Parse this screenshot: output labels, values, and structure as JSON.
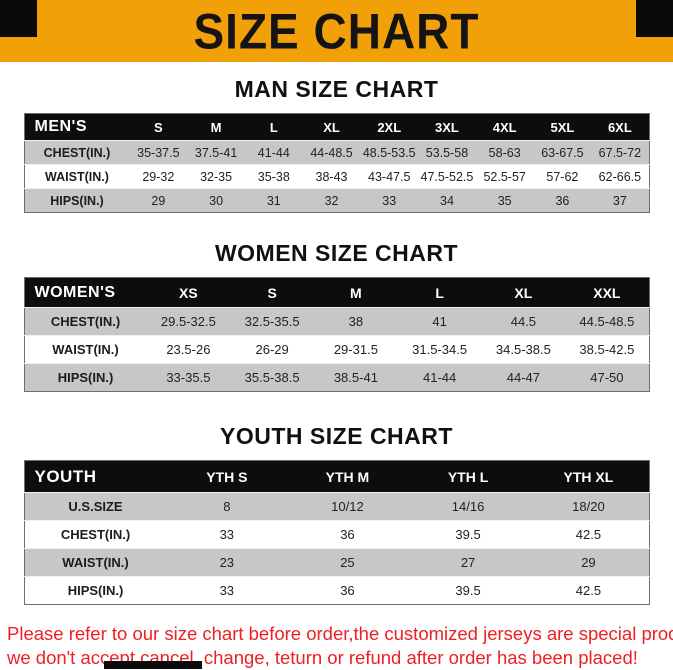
{
  "banner": {
    "title": "SIZE CHART"
  },
  "colors": {
    "banner_background": "#F2A008",
    "table_header_background": "#0d0d0d",
    "row_stripe": "#c7c7c7",
    "footer_text": "#ED2024"
  },
  "sections": [
    {
      "heading": "MAN SIZE CHART",
      "table": {
        "header": [
          "MEN'S",
          "S",
          "M",
          "L",
          "XL",
          "2XL",
          "3XL",
          "4XL",
          "5XL",
          "6XL"
        ],
        "rows": [
          {
            "label": "CHEST(IN.)",
            "values": [
              "35-37.5",
              "37.5-41",
              "41-44",
              "44-48.5",
              "48.5-53.5",
              "53.5-58",
              "58-63",
              "63-67.5",
              "67.5-72"
            ]
          },
          {
            "label": "WAIST(IN.)",
            "values": [
              "29-32",
              "32-35",
              "35-38",
              "38-43",
              "43-47.5",
              "47.5-52.5",
              "52.5-57",
              "57-62",
              "62-66.5"
            ]
          },
          {
            "label": "HIPS(IN.)",
            "values": [
              "29",
              "30",
              "31",
              "32",
              "33",
              "34",
              "35",
              "36",
              "37"
            ]
          }
        ]
      }
    },
    {
      "heading": "WOMEN SIZE CHART",
      "table": {
        "header": [
          "WOMEN'S",
          "XS",
          "S",
          "M",
          "L",
          "XL",
          "XXL"
        ],
        "rows": [
          {
            "label": "CHEST(IN.)",
            "values": [
              "29.5-32.5",
              "32.5-35.5",
              "38",
              "41",
              "44.5",
              "44.5-48.5"
            ]
          },
          {
            "label": "WAIST(IN.)",
            "values": [
              "23.5-26",
              "26-29",
              "29-31.5",
              "31.5-34.5",
              "34.5-38.5",
              "38.5-42.5"
            ]
          },
          {
            "label": "HIPS(IN.)",
            "values": [
              "33-35.5",
              "35.5-38.5",
              "38.5-41",
              "41-44",
              "44-47",
              "47-50"
            ]
          }
        ]
      }
    },
    {
      "heading": "YOUTH SIZE CHART",
      "table": {
        "header": [
          "YOUTH",
          "YTH S",
          "YTH M",
          "YTH L",
          "YTH XL"
        ],
        "rows": [
          {
            "label": "U.S.SIZE",
            "values": [
              "8",
              "10/12",
              "14/16",
              "18/20"
            ]
          },
          {
            "label": "CHEST(IN.)",
            "values": [
              "33",
              "36",
              "39.5",
              "42.5"
            ]
          },
          {
            "label": "WAIST(IN.)",
            "values": [
              "23",
              "25",
              "27",
              "29"
            ]
          },
          {
            "label": "HIPS(IN.)",
            "values": [
              "33",
              "36",
              "39.5",
              "42.5"
            ]
          }
        ]
      }
    }
  ],
  "footer": {
    "line1": "Please refer to our size chart before order,the customized jerseys are special products,",
    "line2": "we don't accept cancel, change, teturn or refund after order has been placed!"
  }
}
